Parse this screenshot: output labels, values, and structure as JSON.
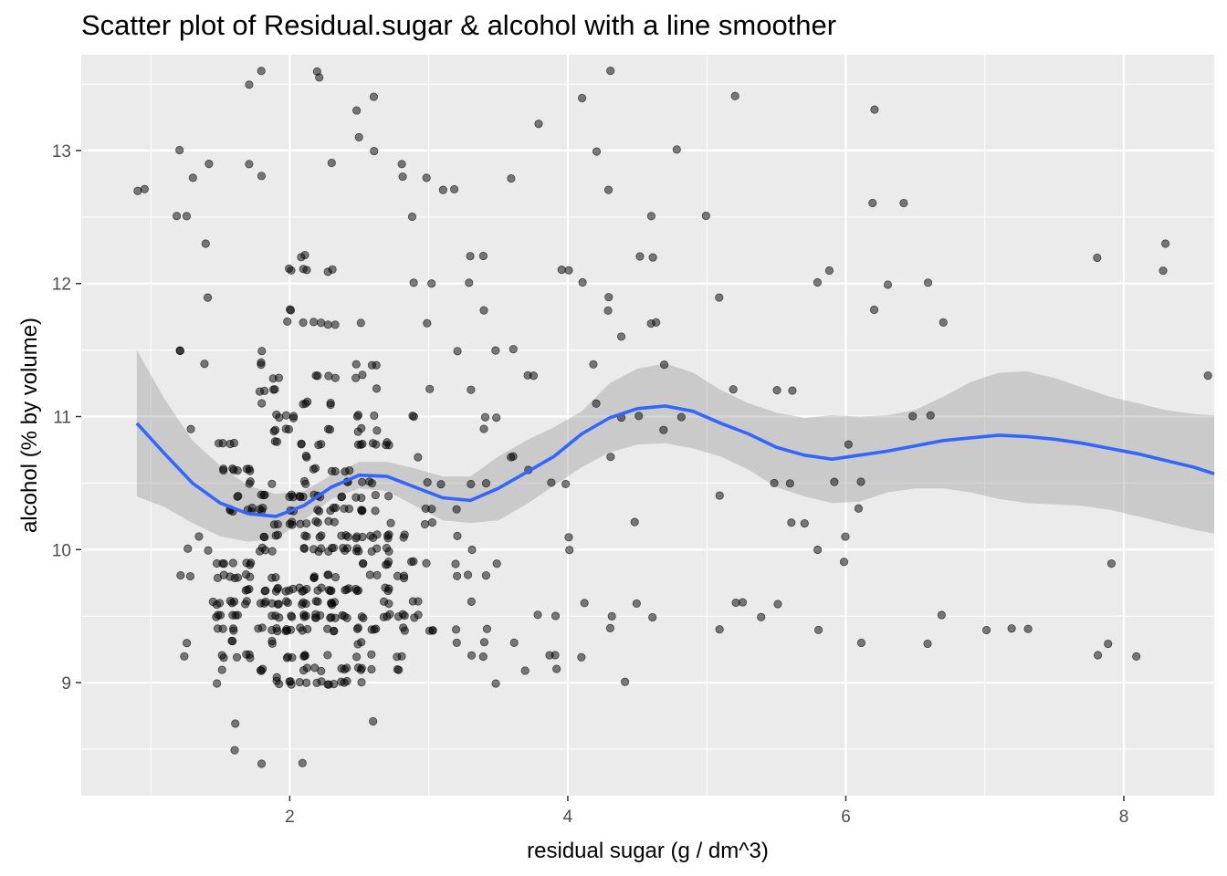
{
  "chart_data": {
    "type": "scatter",
    "title": "Scatter plot of Residual.sugar & alcohol with a line smoother",
    "xlabel": "residual sugar (g / dm^3)",
    "ylabel": "alcohol (% by volume)",
    "xlim": [
      0.5,
      8.65
    ],
    "ylim": [
      8.15,
      13.72
    ],
    "x_ticks": [
      2,
      4,
      6,
      8
    ],
    "y_ticks": [
      9,
      10,
      11,
      12,
      13
    ],
    "grid": true,
    "legend": "none",
    "colors": {
      "panel_bg": "#ebebeb",
      "grid": "#ffffff",
      "points": "#000000",
      "smoother": "#3366ff",
      "ribbon": "#c6c6c6"
    },
    "points": [
      [
        0.9,
        12.7
      ],
      [
        0.95,
        12.7
      ],
      [
        1.2,
        13.0
      ],
      [
        1.2,
        12.5
      ],
      [
        1.25,
        12.5
      ],
      [
        1.2,
        11.5
      ],
      [
        1.2,
        11.5
      ],
      [
        1.3,
        12.8
      ],
      [
        1.3,
        10.9
      ],
      [
        1.2,
        9.8
      ],
      [
        1.3,
        9.8
      ],
      [
        1.25,
        9.3
      ],
      [
        1.25,
        9.2
      ],
      [
        1.25,
        10.0
      ],
      [
        1.35,
        10.1
      ],
      [
        1.4,
        10.0
      ],
      [
        1.4,
        11.4
      ],
      [
        1.4,
        12.3
      ],
      [
        1.4,
        12.9
      ],
      [
        1.4,
        11.9
      ],
      [
        1.45,
        9.6
      ],
      [
        1.5,
        9.1
      ],
      [
        1.5,
        9.5
      ],
      [
        1.6,
        8.7
      ],
      [
        1.6,
        8.5
      ],
      [
        1.7,
        12.9
      ],
      [
        1.7,
        13.5
      ],
      [
        1.8,
        13.6
      ],
      [
        1.8,
        12.8
      ],
      [
        1.8,
        8.4
      ],
      [
        1.8,
        9.1
      ],
      [
        1.9,
        9.05
      ],
      [
        2.1,
        8.4
      ],
      [
        2.2,
        13.6
      ],
      [
        2.2,
        13.55
      ],
      [
        2.3,
        12.9
      ],
      [
        2.6,
        13.4
      ],
      [
        2.5,
        13.3
      ],
      [
        2.5,
        13.1
      ],
      [
        2.6,
        13.0
      ],
      [
        2.6,
        8.7
      ],
      [
        2.6,
        9.1
      ],
      [
        2.5,
        9.0
      ],
      [
        2.9,
        12.5
      ],
      [
        2.8,
        12.9
      ],
      [
        2.8,
        12.8
      ],
      [
        2.9,
        12.0
      ],
      [
        3.0,
        12.0
      ],
      [
        3.0,
        11.7
      ],
      [
        3.0,
        11.2
      ],
      [
        3.1,
        12.7
      ],
      [
        3.2,
        12.7
      ],
      [
        3.0,
        12.8
      ],
      [
        3.3,
        12.2
      ],
      [
        3.4,
        12.2
      ],
      [
        3.3,
        12.0
      ],
      [
        3.4,
        11.8
      ],
      [
        3.5,
        11.5
      ],
      [
        3.6,
        11.5
      ],
      [
        3.7,
        11.3
      ],
      [
        3.75,
        11.3
      ],
      [
        3.6,
        12.8
      ],
      [
        3.8,
        13.2
      ],
      [
        3.95,
        12.1
      ],
      [
        4.0,
        12.1
      ],
      [
        4.1,
        12.0
      ],
      [
        4.2,
        13.0
      ],
      [
        4.1,
        13.4
      ],
      [
        4.3,
        13.6
      ],
      [
        4.3,
        12.7
      ],
      [
        4.3,
        11.9
      ],
      [
        4.3,
        11.8
      ],
      [
        4.4,
        11.6
      ],
      [
        4.5,
        12.2
      ],
      [
        4.6,
        12.5
      ],
      [
        4.6,
        12.2
      ],
      [
        4.6,
        11.7
      ],
      [
        4.65,
        11.7
      ],
      [
        4.7,
        11.4
      ],
      [
        4.2,
        11.1
      ],
      [
        4.2,
        11.4
      ],
      [
        4.4,
        11.0
      ],
      [
        4.5,
        11.0
      ],
      [
        4.3,
        10.7
      ],
      [
        4.7,
        10.9
      ],
      [
        4.8,
        11.0
      ],
      [
        4.8,
        13.0
      ],
      [
        5.0,
        12.5
      ],
      [
        5.1,
        11.9
      ],
      [
        5.2,
        13.4
      ],
      [
        5.2,
        11.2
      ],
      [
        5.1,
        10.4
      ],
      [
        5.1,
        9.4
      ],
      [
        5.2,
        9.6
      ],
      [
        5.25,
        9.6
      ],
      [
        5.4,
        9.5
      ],
      [
        5.5,
        9.6
      ],
      [
        5.5,
        10.5
      ],
      [
        5.6,
        10.5
      ],
      [
        5.6,
        10.2
      ],
      [
        5.7,
        10.2
      ],
      [
        5.8,
        10.0
      ],
      [
        5.8,
        9.4
      ],
      [
        5.9,
        10.5
      ],
      [
        5.5,
        11.2
      ],
      [
        5.6,
        11.2
      ],
      [
        5.9,
        12.1
      ],
      [
        5.8,
        12.0
      ],
      [
        6.0,
        10.8
      ],
      [
        6.0,
        10.1
      ],
      [
        6.0,
        9.9
      ],
      [
        6.1,
        10.3
      ],
      [
        6.1,
        10.5
      ],
      [
        6.1,
        9.3
      ],
      [
        6.2,
        13.3
      ],
      [
        6.2,
        12.6
      ],
      [
        6.2,
        11.8
      ],
      [
        6.3,
        12.0
      ],
      [
        6.4,
        12.6
      ],
      [
        6.5,
        11.0
      ],
      [
        6.6,
        12.0
      ],
      [
        6.6,
        11.0
      ],
      [
        6.7,
        11.7
      ],
      [
        6.6,
        9.3
      ],
      [
        6.7,
        9.5
      ],
      [
        7.0,
        9.4
      ],
      [
        7.2,
        9.4
      ],
      [
        7.3,
        9.4
      ],
      [
        7.8,
        12.2
      ],
      [
        7.8,
        9.2
      ],
      [
        7.9,
        9.9
      ],
      [
        7.9,
        9.3
      ],
      [
        8.1,
        9.2
      ],
      [
        8.3,
        12.3
      ],
      [
        8.3,
        12.1
      ],
      [
        8.6,
        11.3
      ],
      [
        3.1,
        10.5
      ],
      [
        3.0,
        10.5
      ],
      [
        3.2,
        10.3
      ],
      [
        3.3,
        10.5
      ],
      [
        3.4,
        10.5
      ],
      [
        3.2,
        10.1
      ],
      [
        3.2,
        9.9
      ],
      [
        3.2,
        9.8
      ],
      [
        3.3,
        10.0
      ],
      [
        3.3,
        9.8
      ],
      [
        3.4,
        9.8
      ],
      [
        3.5,
        9.9
      ],
      [
        3.3,
        9.6
      ],
      [
        3.2,
        9.4
      ],
      [
        3.4,
        9.4
      ],
      [
        3.4,
        9.3
      ],
      [
        3.2,
        9.3
      ],
      [
        3.3,
        9.2
      ],
      [
        3.4,
        9.2
      ],
      [
        3.5,
        9.0
      ],
      [
        3.6,
        9.3
      ],
      [
        3.7,
        9.1
      ],
      [
        3.8,
        9.5
      ],
      [
        3.9,
        9.5
      ],
      [
        3.85,
        9.2
      ],
      [
        3.9,
        9.2
      ],
      [
        3.9,
        9.1
      ],
      [
        4.0,
        10.1
      ],
      [
        4.0,
        10.0
      ],
      [
        3.6,
        10.7
      ],
      [
        3.7,
        10.6
      ],
      [
        3.9,
        10.5
      ],
      [
        4.0,
        10.5
      ],
      [
        4.1,
        9.6
      ],
      [
        4.1,
        9.2
      ],
      [
        4.3,
        9.5
      ],
      [
        4.3,
        9.4
      ],
      [
        4.4,
        9.0
      ],
      [
        4.5,
        9.6
      ],
      [
        4.6,
        9.5
      ],
      [
        4.5,
        10.2
      ],
      [
        3.4,
        10.9
      ],
      [
        3.4,
        11.0
      ],
      [
        3.5,
        11.0
      ],
      [
        3.3,
        11.2
      ],
      [
        3.2,
        11.5
      ],
      [
        3.6,
        10.7
      ]
    ],
    "smoother": [
      [
        0.9,
        10.95
      ],
      [
        1.1,
        10.72
      ],
      [
        1.3,
        10.5
      ],
      [
        1.5,
        10.35
      ],
      [
        1.7,
        10.27
      ],
      [
        1.9,
        10.25
      ],
      [
        2.1,
        10.33
      ],
      [
        2.3,
        10.47
      ],
      [
        2.5,
        10.56
      ],
      [
        2.7,
        10.55
      ],
      [
        2.9,
        10.47
      ],
      [
        3.1,
        10.39
      ],
      [
        3.3,
        10.37
      ],
      [
        3.5,
        10.46
      ],
      [
        3.7,
        10.58
      ],
      [
        3.9,
        10.7
      ],
      [
        4.1,
        10.87
      ],
      [
        4.3,
        10.99
      ],
      [
        4.5,
        11.06
      ],
      [
        4.7,
        11.08
      ],
      [
        4.9,
        11.04
      ],
      [
        5.1,
        10.95
      ],
      [
        5.3,
        10.87
      ],
      [
        5.5,
        10.77
      ],
      [
        5.7,
        10.71
      ],
      [
        5.9,
        10.68
      ],
      [
        6.1,
        10.71
      ],
      [
        6.3,
        10.74
      ],
      [
        6.5,
        10.78
      ],
      [
        6.7,
        10.82
      ],
      [
        6.9,
        10.84
      ],
      [
        7.1,
        10.86
      ],
      [
        7.3,
        10.85
      ],
      [
        7.5,
        10.83
      ],
      [
        7.7,
        10.8
      ],
      [
        7.9,
        10.76
      ],
      [
        8.1,
        10.72
      ],
      [
        8.3,
        10.67
      ],
      [
        8.5,
        10.62
      ],
      [
        8.65,
        10.57
      ]
    ],
    "ribbon_upper": [
      [
        0.9,
        11.5
      ],
      [
        1.1,
        11.13
      ],
      [
        1.3,
        10.82
      ],
      [
        1.5,
        10.63
      ],
      [
        1.7,
        10.48
      ],
      [
        1.9,
        10.42
      ],
      [
        2.1,
        10.44
      ],
      [
        2.3,
        10.56
      ],
      [
        2.5,
        10.66
      ],
      [
        2.7,
        10.66
      ],
      [
        2.9,
        10.61
      ],
      [
        3.1,
        10.55
      ],
      [
        3.3,
        10.55
      ],
      [
        3.5,
        10.7
      ],
      [
        3.7,
        10.82
      ],
      [
        3.9,
        10.92
      ],
      [
        4.1,
        11.04
      ],
      [
        4.3,
        11.25
      ],
      [
        4.5,
        11.36
      ],
      [
        4.7,
        11.4
      ],
      [
        4.9,
        11.33
      ],
      [
        5.1,
        11.2
      ],
      [
        5.3,
        11.1
      ],
      [
        5.5,
        11.03
      ],
      [
        5.7,
        10.99
      ],
      [
        5.9,
        11.01
      ],
      [
        6.1,
        11.0
      ],
      [
        6.3,
        11.01
      ],
      [
        6.5,
        11.05
      ],
      [
        6.7,
        11.15
      ],
      [
        6.9,
        11.26
      ],
      [
        7.1,
        11.33
      ],
      [
        7.3,
        11.34
      ],
      [
        7.5,
        11.29
      ],
      [
        7.7,
        11.22
      ],
      [
        7.9,
        11.15
      ],
      [
        8.1,
        11.1
      ],
      [
        8.3,
        11.05
      ],
      [
        8.5,
        11.02
      ],
      [
        8.65,
        11.01
      ]
    ],
    "ribbon_lower": [
      [
        0.9,
        10.4
      ],
      [
        1.1,
        10.32
      ],
      [
        1.3,
        10.2
      ],
      [
        1.5,
        10.1
      ],
      [
        1.7,
        10.06
      ],
      [
        1.9,
        10.08
      ],
      [
        2.1,
        10.22
      ],
      [
        2.3,
        10.38
      ],
      [
        2.5,
        10.46
      ],
      [
        2.7,
        10.44
      ],
      [
        2.9,
        10.33
      ],
      [
        3.1,
        10.22
      ],
      [
        3.3,
        10.2
      ],
      [
        3.5,
        10.22
      ],
      [
        3.7,
        10.34
      ],
      [
        3.9,
        10.48
      ],
      [
        4.1,
        10.62
      ],
      [
        4.3,
        10.73
      ],
      [
        4.5,
        10.79
      ],
      [
        4.7,
        10.8
      ],
      [
        4.9,
        10.76
      ],
      [
        5.1,
        10.7
      ],
      [
        5.3,
        10.6
      ],
      [
        5.5,
        10.47
      ],
      [
        5.7,
        10.4
      ],
      [
        5.9,
        10.35
      ],
      [
        6.1,
        10.36
      ],
      [
        6.3,
        10.43
      ],
      [
        6.5,
        10.46
      ],
      [
        6.7,
        10.46
      ],
      [
        6.9,
        10.43
      ],
      [
        7.1,
        10.38
      ],
      [
        7.3,
        10.35
      ],
      [
        7.5,
        10.34
      ],
      [
        7.7,
        10.33
      ],
      [
        7.9,
        10.3
      ],
      [
        8.1,
        10.25
      ],
      [
        8.3,
        10.2
      ],
      [
        8.5,
        10.15
      ],
      [
        8.65,
        10.12
      ]
    ]
  }
}
